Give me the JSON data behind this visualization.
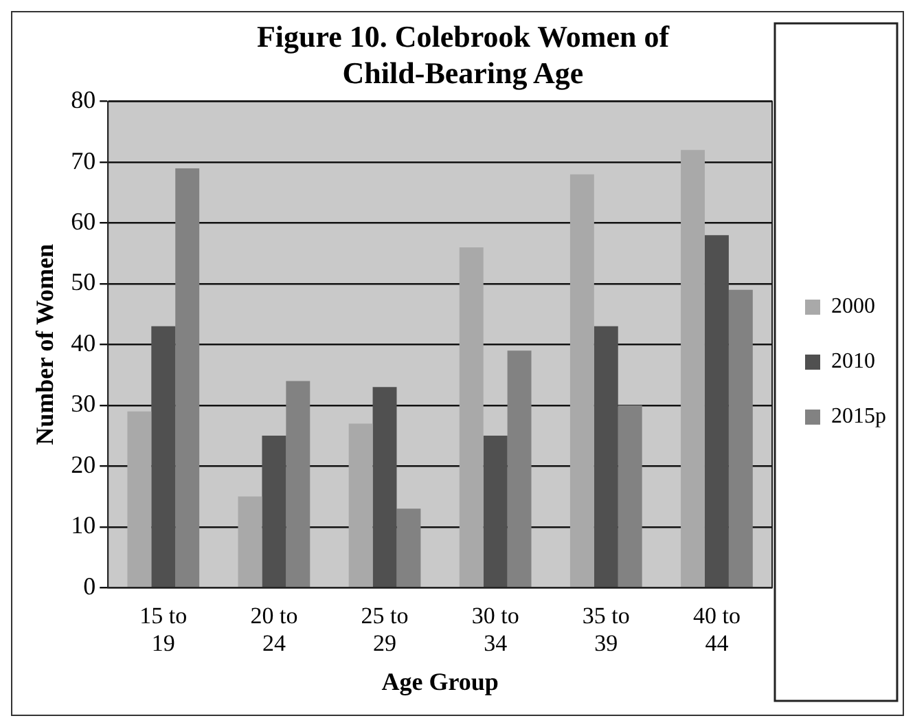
{
  "chart_data": {
    "type": "bar",
    "title": "Figure 10. Colebrook Women of Child-Bearing Age",
    "xlabel": "Age Group",
    "ylabel": "Number of Women",
    "categories": [
      "15 to 19",
      "20 to 24",
      "25 to 29",
      "30 to 34",
      "35 to 39",
      "40 to 44"
    ],
    "series": [
      {
        "name": "2000",
        "color": "#a9a9a9",
        "values": [
          29,
          15,
          27,
          56,
          68,
          72
        ]
      },
      {
        "name": "2010",
        "color": "#505050",
        "values": [
          43,
          25,
          33,
          25,
          43,
          58
        ]
      },
      {
        "name": "2015p",
        "color": "#828282",
        "values": [
          69,
          34,
          13,
          39,
          30,
          49
        ]
      }
    ],
    "ylim": [
      0,
      80
    ],
    "yticks": [
      0,
      10,
      20,
      30,
      40,
      50,
      60,
      70,
      80
    ],
    "grid": "y",
    "legend": "right"
  }
}
